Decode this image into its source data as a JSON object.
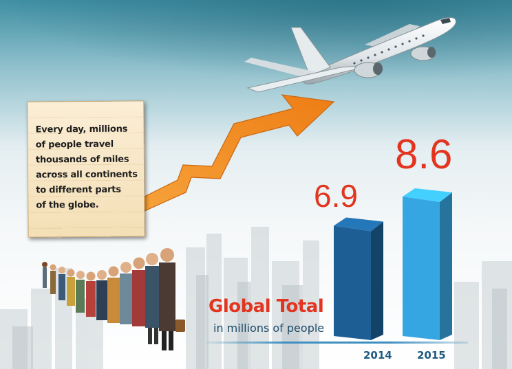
{
  "note": {
    "lines": [
      "Every day, millions",
      "of people travel",
      "thousands of miles",
      "across all continents",
      "to different parts",
      "of the globe."
    ]
  },
  "chart_data": {
    "type": "bar",
    "title": "Global Total",
    "subtitle": "in millions of people",
    "categories": [
      "2014",
      "2015"
    ],
    "values": [
      6.9,
      8.6
    ],
    "value_labels": [
      "6.9",
      "8.6"
    ],
    "bar_colors": [
      "#1d5f94",
      "#36a6e2"
    ],
    "label_color": "#e2341f"
  },
  "colors": {
    "title": "#e2341f",
    "subtitle": "#1c4a66",
    "arrow": "#f28d22",
    "year": "#1e5a82"
  },
  "icons": {
    "plane": "airplane-icon",
    "arrow": "growth-arrow-icon",
    "crowd": "crowd-illustration"
  }
}
